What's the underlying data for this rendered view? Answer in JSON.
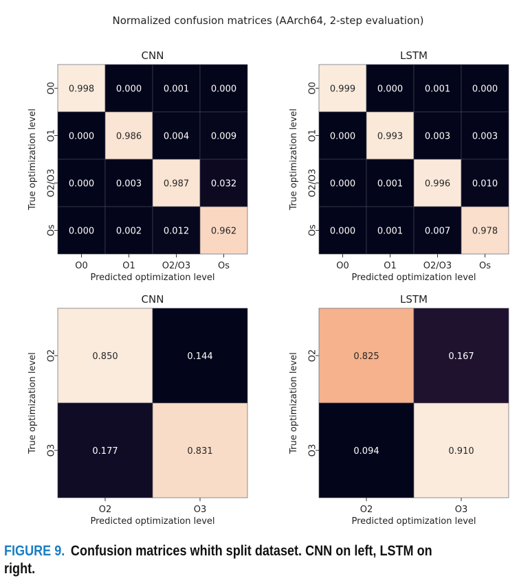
{
  "suptitle": "Normalized confusion matrices (AArch64, 2-step evaluation)",
  "caption": {
    "label": "FIGURE 9.",
    "text": "Confusion matrices whith split dataset. CNN on left, LSTM on right."
  },
  "chart_data": [
    {
      "type": "heatmap",
      "title": "CNN",
      "xlabel": "Predicted optimization level",
      "ylabel": "True optimization level",
      "xticks": [
        "O0",
        "O1",
        "O2/O3",
        "Os"
      ],
      "yticks": [
        "O0",
        "O1",
        "O2/O3",
        "Os"
      ],
      "colormap": "rocket",
      "values": [
        [
          0.998,
          0.0,
          0.001,
          0.0
        ],
        [
          0.0,
          0.986,
          0.004,
          0.009
        ],
        [
          0.0,
          0.003,
          0.987,
          0.032
        ],
        [
          0.0,
          0.002,
          0.012,
          0.962
        ]
      ]
    },
    {
      "type": "heatmap",
      "title": "LSTM",
      "xlabel": "Predicted optimization level",
      "ylabel": "True optimization level",
      "xticks": [
        "O0",
        "O1",
        "O2/O3",
        "Os"
      ],
      "yticks": [
        "O0",
        "O1",
        "O2/O3",
        "Os"
      ],
      "colormap": "rocket",
      "values": [
        [
          0.999,
          0.0,
          0.001,
          0.0
        ],
        [
          0.0,
          0.993,
          0.003,
          0.003
        ],
        [
          0.0,
          0.001,
          0.996,
          0.01
        ],
        [
          0.0,
          0.001,
          0.007,
          0.978
        ]
      ]
    },
    {
      "type": "heatmap",
      "title": "CNN",
      "xlabel": "Predicted optimization level",
      "ylabel": "True optimization level",
      "xticks": [
        "O2",
        "O3"
      ],
      "yticks": [
        "O2",
        "O3"
      ],
      "colormap": "rocket",
      "values": [
        [
          0.85,
          0.144
        ],
        [
          0.177,
          0.831
        ]
      ]
    },
    {
      "type": "heatmap",
      "title": "LSTM",
      "xlabel": "Predicted optimization level",
      "ylabel": "True optimization level",
      "xticks": [
        "O2",
        "O3"
      ],
      "yticks": [
        "O2",
        "O3"
      ],
      "colormap": "rocket",
      "values": [
        [
          0.825,
          0.167
        ],
        [
          0.094,
          0.91
        ]
      ]
    }
  ]
}
